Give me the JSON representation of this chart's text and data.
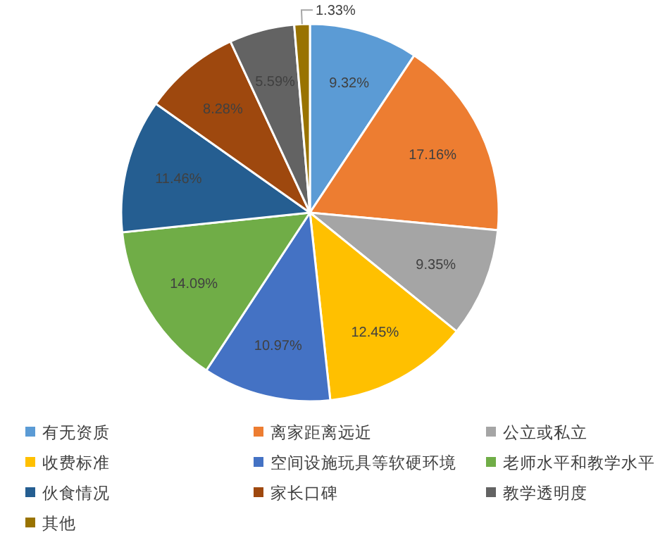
{
  "chart_data": {
    "type": "pie",
    "categories": [
      "有无资质",
      "离家距离远近",
      "公立或私立",
      "收费标准",
      "空间设施玩具等软硬环境",
      "老师水平和教学水平",
      "伙食情况",
      "家长口碑",
      "教学透明度",
      "其他"
    ],
    "values": [
      9.32,
      17.16,
      9.35,
      12.45,
      10.97,
      14.09,
      11.46,
      8.28,
      5.59,
      1.33
    ],
    "colors": [
      "#5b9bd5",
      "#ed7d31",
      "#a5a5a5",
      "#ffc000",
      "#4472c4",
      "#70ad47",
      "#255e91",
      "#9e480e",
      "#636363",
      "#997300"
    ],
    "value_labels": [
      "9.32%",
      "17.16%",
      "9.35%",
      "12.45%",
      "10.97%",
      "14.09%",
      "11.46%",
      "8.28%",
      "5.59%",
      "1.33%"
    ],
    "legend": "bottom"
  }
}
